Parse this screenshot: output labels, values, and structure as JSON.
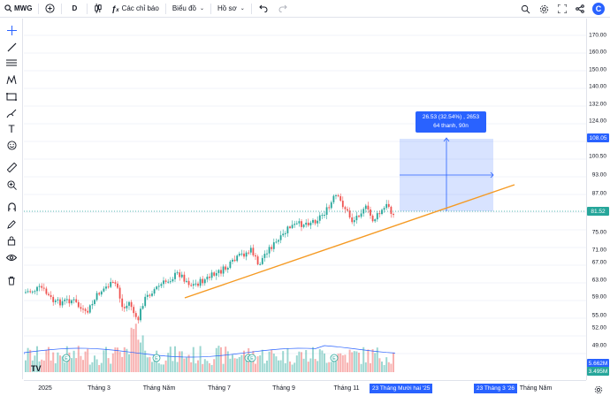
{
  "toolbar": {
    "symbol": "MWG",
    "timeframe": "D",
    "indicators": "Các chỉ báo",
    "chart_type": "Biểu đồ",
    "profile": "Hồ sơ",
    "brand_letter": "C"
  },
  "price_axis": {
    "labels": [
      "170.00",
      "160.00",
      "150.00",
      "140.00",
      "132.00",
      "124.00",
      "116.00",
      "100.50",
      "93.00",
      "87.00",
      "75.00",
      "71.00",
      "67.00",
      "63.00",
      "59.00",
      "55.00",
      "52.00",
      "49.00"
    ],
    "current_price": "81.52",
    "target_price": "108.05",
    "vol_label_1": "5.662M",
    "vol_label_2": "3.495M",
    "current_color": "#26a69a",
    "target_color": "#2962ff",
    "vol1_color": "#2962ff",
    "vol2_color": "#26a69a"
  },
  "time_axis": {
    "labels": [
      "2025",
      "Tháng 3",
      "Tháng Năm",
      "Tháng 7",
      "Tháng 9",
      "Tháng 11",
      "Tháng Năm"
    ],
    "badge_1": "23 Tháng Mười hai '25",
    "badge_2": "23 Tháng 3 '26"
  },
  "measure": {
    "line1": "26.53 (32.54%) , 2653",
    "line2": "64 thanh, 90n"
  },
  "events": {
    "earnings_letter": "E"
  },
  "watermark": "TV",
  "colors": {
    "up": "#26a69a",
    "down": "#ef5350",
    "trendline": "#f59a23",
    "accent": "#2962ff"
  }
}
